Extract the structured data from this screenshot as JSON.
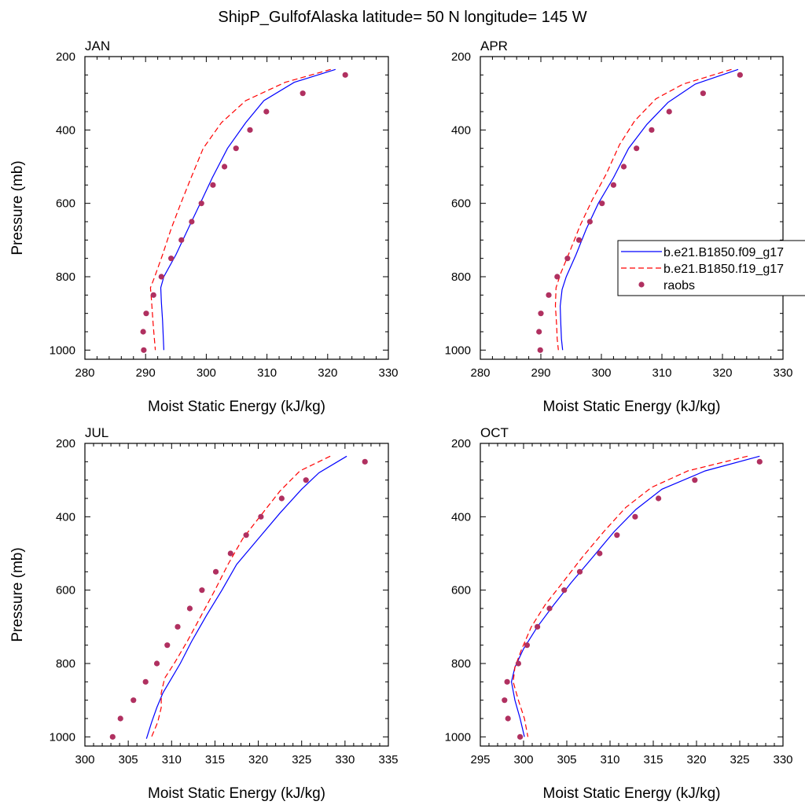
{
  "title": "ShipP_GulfofAlaska  latitude= 50 N longitude= 145 W",
  "legend": {
    "placement": "right-middle",
    "entries": [
      {
        "label": "b.e21.B1850.f09_g17",
        "color": "#0000ff",
        "style": "solid"
      },
      {
        "label": "b.e21.B1850.f19_g17",
        "color": "#ff0000",
        "style": "dashed"
      },
      {
        "label": "raobs",
        "color": "#b03060",
        "style": "marker"
      }
    ]
  },
  "chart_data": [
    {
      "type": "line",
      "panel": "JAN",
      "xlabel": "Moist Static Energy (kJ/kg)",
      "ylabel": "Pressure (mb)",
      "xlim": [
        280,
        330
      ],
      "ylim": [
        1025,
        200
      ],
      "xticks": [
        280,
        290,
        300,
        310,
        320,
        330
      ],
      "yticks": [
        200,
        400,
        600,
        800,
        1000
      ],
      "series": [
        {
          "name": "b.e21.B1850.f09_g17",
          "color": "#0000ff",
          "style": "solid",
          "points": [
            [
              321.3,
              235
            ],
            [
              314.5,
              270
            ],
            [
              309.5,
              320
            ],
            [
              306.5,
              380
            ],
            [
              303.5,
              450
            ],
            [
              301.0,
              530
            ],
            [
              299.0,
              600
            ],
            [
              297.0,
              670
            ],
            [
              295.0,
              740
            ],
            [
              293.0,
              800
            ],
            [
              292.5,
              830
            ],
            [
              292.6,
              870
            ],
            [
              292.8,
              920
            ],
            [
              292.9,
              960
            ],
            [
              293.0,
              1000
            ]
          ]
        },
        {
          "name": "b.e21.B1850.f19_g17",
          "color": "#ff0000",
          "style": "dashed",
          "points": [
            [
              320.5,
              235
            ],
            [
              313.0,
              270
            ],
            [
              306.5,
              320
            ],
            [
              302.5,
              380
            ],
            [
              299.5,
              450
            ],
            [
              297.5,
              530
            ],
            [
              295.8,
              600
            ],
            [
              294.2,
              670
            ],
            [
              292.8,
              740
            ],
            [
              291.5,
              800
            ],
            [
              290.8,
              830
            ],
            [
              291.0,
              870
            ],
            [
              291.2,
              920
            ],
            [
              291.4,
              960
            ],
            [
              291.6,
              1000
            ]
          ]
        },
        {
          "name": "raobs",
          "color": "#b03060",
          "style": "marker",
          "points": [
            [
              322.9,
              250
            ],
            [
              315.9,
              300
            ],
            [
              309.9,
              350
            ],
            [
              307.2,
              400
            ],
            [
              304.9,
              450
            ],
            [
              303.0,
              500
            ],
            [
              301.1,
              550
            ],
            [
              299.2,
              600
            ],
            [
              297.6,
              650
            ],
            [
              295.9,
              700
            ],
            [
              294.2,
              750
            ],
            [
              292.6,
              800
            ],
            [
              291.3,
              850
            ],
            [
              290.1,
              900
            ],
            [
              289.6,
              950
            ],
            [
              289.7,
              1000
            ]
          ]
        }
      ]
    },
    {
      "type": "line",
      "panel": "APR",
      "xlabel": "Moist Static Energy (kJ/kg)",
      "ylabel": "",
      "xlim": [
        280,
        330
      ],
      "ylim": [
        1025,
        200
      ],
      "xticks": [
        280,
        290,
        300,
        310,
        320,
        330
      ],
      "yticks": [
        200,
        400,
        600,
        800,
        1000
      ],
      "series": [
        {
          "name": "b.e21.B1850.f09_g17",
          "color": "#0000ff",
          "style": "solid",
          "points": [
            [
              322.6,
              235
            ],
            [
              315.5,
              275
            ],
            [
              311.0,
              325
            ],
            [
              307.5,
              385
            ],
            [
              304.5,
              450
            ],
            [
              302.0,
              530
            ],
            [
              299.5,
              600
            ],
            [
              297.5,
              670
            ],
            [
              295.8,
              740
            ],
            [
              294.2,
              800
            ],
            [
              293.5,
              835
            ],
            [
              293.2,
              880
            ],
            [
              293.3,
              930
            ],
            [
              293.4,
              970
            ],
            [
              293.6,
              1000
            ]
          ]
        },
        {
          "name": "b.e21.B1850.f19_g17",
          "color": "#ff0000",
          "style": "dashed",
          "points": [
            [
              321.5,
              235
            ],
            [
              313.5,
              275
            ],
            [
              309.0,
              315
            ],
            [
              305.5,
              375
            ],
            [
              303.0,
              440
            ],
            [
              300.8,
              520
            ],
            [
              298.5,
              590
            ],
            [
              296.5,
              660
            ],
            [
              294.8,
              730
            ],
            [
              293.3,
              790
            ],
            [
              292.5,
              830
            ],
            [
              292.4,
              880
            ],
            [
              292.6,
              930
            ],
            [
              292.7,
              970
            ],
            [
              292.9,
              1000
            ]
          ]
        },
        {
          "name": "raobs",
          "color": "#b03060",
          "style": "marker",
          "points": [
            [
              322.9,
              250
            ],
            [
              316.8,
              300
            ],
            [
              311.2,
              350
            ],
            [
              308.3,
              400
            ],
            [
              305.8,
              450
            ],
            [
              303.7,
              500
            ],
            [
              302.0,
              550
            ],
            [
              300.1,
              600
            ],
            [
              298.1,
              650
            ],
            [
              296.3,
              700
            ],
            [
              294.4,
              750
            ],
            [
              292.7,
              800
            ],
            [
              291.3,
              850
            ],
            [
              290.0,
              900
            ],
            [
              289.7,
              950
            ],
            [
              289.9,
              1000
            ]
          ]
        }
      ]
    },
    {
      "type": "line",
      "panel": "JUL",
      "xlabel": "Moist Static Energy (kJ/kg)",
      "ylabel": "Pressure (mb)",
      "xlim": [
        300,
        335
      ],
      "ylim": [
        1025,
        200
      ],
      "xticks": [
        300,
        305,
        310,
        315,
        320,
        325,
        330,
        335
      ],
      "yticks": [
        200,
        400,
        600,
        800,
        1000
      ],
      "series": [
        {
          "name": "b.e21.B1850.f09_g17",
          "color": "#0000ff",
          "style": "solid",
          "points": [
            [
              330.2,
              235
            ],
            [
              327.0,
              280
            ],
            [
              325.0,
              325
            ],
            [
              322.5,
              390
            ],
            [
              320.0,
              460
            ],
            [
              317.5,
              530
            ],
            [
              315.8,
              600
            ],
            [
              314.0,
              670
            ],
            [
              312.3,
              740
            ],
            [
              311.0,
              800
            ],
            [
              310.0,
              840
            ],
            [
              309.0,
              880
            ],
            [
              308.3,
              920
            ],
            [
              307.7,
              960
            ],
            [
              307.1,
              1005
            ]
          ]
        },
        {
          "name": "b.e21.B1850.f19_g17",
          "color": "#ff0000",
          "style": "dashed",
          "points": [
            [
              328.3,
              235
            ],
            [
              324.8,
              275
            ],
            [
              322.5,
              330
            ],
            [
              320.5,
              390
            ],
            [
              318.2,
              460
            ],
            [
              316.5,
              530
            ],
            [
              315.0,
              600
            ],
            [
              313.4,
              670
            ],
            [
              311.8,
              740
            ],
            [
              310.3,
              800
            ],
            [
              309.2,
              840
            ],
            [
              308.8,
              880
            ],
            [
              308.8,
              920
            ],
            [
              308.4,
              960
            ],
            [
              307.6,
              1005
            ]
          ]
        },
        {
          "name": "raobs",
          "color": "#b03060",
          "style": "marker",
          "points": [
            [
              332.3,
              250
            ],
            [
              325.5,
              300
            ],
            [
              322.7,
              350
            ],
            [
              320.3,
              400
            ],
            [
              318.6,
              450
            ],
            [
              316.8,
              500
            ],
            [
              315.1,
              550
            ],
            [
              313.5,
              600
            ],
            [
              312.1,
              650
            ],
            [
              310.7,
              700
            ],
            [
              309.5,
              750
            ],
            [
              308.3,
              800
            ],
            [
              307.0,
              850
            ],
            [
              305.6,
              900
            ],
            [
              304.1,
              950
            ],
            [
              303.2,
              1000
            ]
          ]
        }
      ]
    },
    {
      "type": "line",
      "panel": "OCT",
      "xlabel": "Moist Static Energy (kJ/kg)",
      "ylabel": "",
      "xlim": [
        295,
        330
      ],
      "ylim": [
        1025,
        200
      ],
      "xticks": [
        295,
        300,
        305,
        310,
        315,
        320,
        325,
        330
      ],
      "yticks": [
        200,
        400,
        600,
        800,
        1000
      ],
      "series": [
        {
          "name": "b.e21.B1850.f09_g17",
          "color": "#0000ff",
          "style": "solid",
          "points": [
            [
              327.3,
              235
            ],
            [
              321.0,
              275
            ],
            [
              316.0,
              325
            ],
            [
              313.0,
              380
            ],
            [
              310.5,
              440
            ],
            [
              308.0,
              510
            ],
            [
              305.5,
              580
            ],
            [
              303.5,
              640
            ],
            [
              301.6,
              700
            ],
            [
              300.0,
              760
            ],
            [
              299.0,
              810
            ],
            [
              298.6,
              850
            ],
            [
              299.0,
              900
            ],
            [
              299.6,
              950
            ],
            [
              300.1,
              1000
            ]
          ]
        },
        {
          "name": "b.e21.B1850.f19_g17",
          "color": "#ff0000",
          "style": "dashed",
          "points": [
            [
              325.9,
              235
            ],
            [
              319.0,
              275
            ],
            [
              314.8,
              320
            ],
            [
              311.8,
              375
            ],
            [
              309.3,
              440
            ],
            [
              306.8,
              510
            ],
            [
              304.5,
              580
            ],
            [
              302.5,
              640
            ],
            [
              300.9,
              700
            ],
            [
              299.8,
              760
            ],
            [
              299.0,
              810
            ],
            [
              298.8,
              850
            ],
            [
              299.4,
              900
            ],
            [
              300.1,
              950
            ],
            [
              300.5,
              1000
            ]
          ]
        },
        {
          "name": "raobs",
          "color": "#b03060",
          "style": "marker",
          "points": [
            [
              327.3,
              250
            ],
            [
              319.8,
              300
            ],
            [
              315.6,
              350
            ],
            [
              312.9,
              400
            ],
            [
              310.8,
              450
            ],
            [
              308.8,
              500
            ],
            [
              306.5,
              550
            ],
            [
              304.7,
              600
            ],
            [
              303.0,
              650
            ],
            [
              301.6,
              700
            ],
            [
              300.4,
              750
            ],
            [
              299.4,
              800
            ],
            [
              298.1,
              850
            ],
            [
              297.8,
              900
            ],
            [
              298.2,
              950
            ],
            [
              299.6,
              1000
            ]
          ]
        }
      ]
    }
  ]
}
